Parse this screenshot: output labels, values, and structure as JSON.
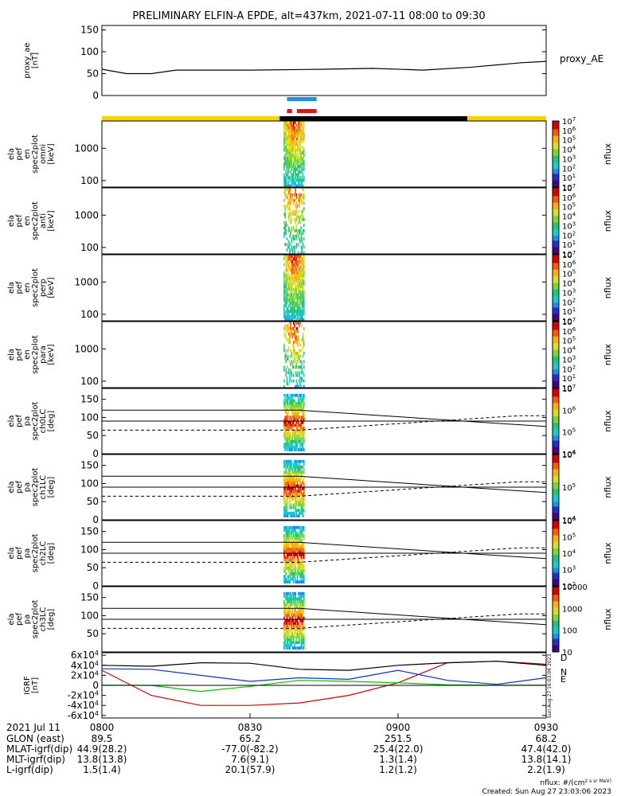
{
  "title": "PRELIMINARY ELFIN-A EPDE, alt=437km, 2021-07-11 08:00 to 09:30",
  "colors": {
    "bar_yellow": "#f5d400",
    "bar_black": "#000000",
    "bar_blue": "#1f8fe6",
    "bar_red": "#e81010",
    "bfield_D": "#d00000",
    "bfield_N": "#1030c0",
    "bfield_E": "#00c000",
    "bfield_total": "#000000"
  },
  "side_stamp": "Sun Aug 27 16:03:06 2023",
  "footer": {
    "nflux_unit": "nflux: #/(cm^2 s sr MeV)",
    "created": "Created: Sun Aug 27 23:03:06 2023"
  },
  "x_axis": {
    "date": "2021 Jul 11",
    "ticks": [
      "0800",
      "0830",
      "0900",
      "0930"
    ],
    "rows": [
      {
        "label": "GLON (east)",
        "values": [
          "89.5",
          "65.2",
          "251.5",
          "68.2"
        ]
      },
      {
        "label": "MLAT-igrf(dip)",
        "values": [
          "44.9(28.2)",
          "-77.0(-82.2)",
          "25.4(22.0)",
          "47.4(42.0)"
        ]
      },
      {
        "label": "MLT-igrf(dip)",
        "values": [
          "13.8(13.8)",
          "7.6(9.1)",
          "1.3(1.4)",
          "13.8(14.1)"
        ]
      },
      {
        "label": "L-igrf(dip)",
        "values": [
          "1.5(1.4)",
          "20.1(57.9)",
          "1.2(1.2)",
          "2.2(1.9)"
        ]
      }
    ]
  },
  "chart_data": [
    {
      "type": "line",
      "panel": "proxy_ae",
      "ylabel_lines": [
        "proxy_ae",
        "[nT]"
      ],
      "legend": "proxy_AE",
      "yticks": [
        "0",
        "50",
        "100",
        "150"
      ],
      "ylim": [
        0,
        160
      ],
      "xlim": [
        0,
        90
      ],
      "x": [
        0,
        5,
        10,
        15,
        30,
        45,
        55,
        65,
        75,
        85,
        90
      ],
      "series": [
        {
          "values": [
            60,
            50,
            50,
            58,
            58,
            60,
            62,
            58,
            65,
            75,
            78
          ]
        }
      ]
    },
    {
      "type": "heatmap",
      "panel": "omni",
      "ylabel_lines": [
        "ela",
        "pef",
        "en",
        "spec2plot",
        "omni",
        "[keV]"
      ],
      "yscale": "log",
      "yticks": [
        "100",
        "1000"
      ],
      "ylim": [
        63,
        7000
      ],
      "colorbar": {
        "label": "nflux",
        "ticks": [
          "10",
          "10^1",
          "10^2",
          "10^3",
          "10^4",
          "10^5",
          "10^6",
          "10^7"
        ]
      },
      "active_x_range": [
        36,
        41
      ]
    },
    {
      "type": "heatmap",
      "panel": "anti",
      "ylabel_lines": [
        "ela",
        "pef",
        "en",
        "spec2plot",
        "anti",
        "[keV]"
      ],
      "yscale": "log",
      "yticks": [
        "100",
        "1000"
      ],
      "ylim": [
        63,
        7000
      ],
      "colorbar": {
        "label": "nflux",
        "ticks": [
          "10",
          "10^1",
          "10^2",
          "10^3",
          "10^4",
          "10^5",
          "10^6",
          "10^7"
        ]
      },
      "active_x_range": [
        36,
        41
      ]
    },
    {
      "type": "heatmap",
      "panel": "perp",
      "ylabel_lines": [
        "ela",
        "pef",
        "en",
        "spec2plot",
        "perp",
        "[keV]"
      ],
      "yscale": "log",
      "yticks": [
        "100",
        "1000"
      ],
      "ylim": [
        63,
        7000
      ],
      "colorbar": {
        "label": "nflux",
        "ticks": [
          "10",
          "10^1",
          "10^2",
          "10^3",
          "10^4",
          "10^5",
          "10^6",
          "10^7"
        ]
      },
      "active_x_range": [
        36,
        41
      ]
    },
    {
      "type": "heatmap",
      "panel": "para",
      "ylabel_lines": [
        "ela",
        "pef",
        "en",
        "spec2plot",
        "para",
        "[keV]"
      ],
      "yscale": "log",
      "yticks": [
        "100",
        "1000"
      ],
      "ylim": [
        63,
        7000
      ],
      "colorbar": {
        "label": "nflux",
        "ticks": [
          "10",
          "10^1",
          "10^2",
          "10^3",
          "10^4",
          "10^5",
          "10^6",
          "10^7"
        ]
      },
      "active_x_range": [
        36,
        41
      ]
    },
    {
      "type": "heatmap",
      "panel": "ch0LC",
      "ylabel_lines": [
        "ela",
        "pef",
        "pa",
        "spec2plot",
        "ch0LC",
        "[deg]"
      ],
      "yticks": [
        "0",
        "50",
        "100",
        "150"
      ],
      "ylim": [
        0,
        180
      ],
      "colorbar": {
        "label": "nflux",
        "ticks": [
          "10^4",
          "10^5",
          "10^6",
          "10^7"
        ]
      },
      "active_x_range": [
        36,
        41
      ]
    },
    {
      "type": "heatmap",
      "panel": "ch1LC",
      "ylabel_lines": [
        "ela",
        "pef",
        "pa",
        "spec2plot",
        "ch1LC",
        "[deg]"
      ],
      "yticks": [
        "0",
        "50",
        "100",
        "150"
      ],
      "ylim": [
        0,
        180
      ],
      "colorbar": {
        "label": "nflux",
        "ticks": [
          "10^4",
          "10^5",
          "10^6"
        ]
      },
      "active_x_range": [
        36,
        41
      ]
    },
    {
      "type": "heatmap",
      "panel": "ch2LC",
      "ylabel_lines": [
        "ela",
        "pef",
        "pa",
        "spec2plot",
        "ch2LC",
        "[deg]"
      ],
      "yticks": [
        "0",
        "50",
        "100",
        "150"
      ],
      "ylim": [
        0,
        180
      ],
      "colorbar": {
        "label": "nflux",
        "ticks": [
          "10^2",
          "10^3",
          "10^4",
          "10^5",
          "10^6"
        ]
      },
      "active_x_range": [
        36,
        41
      ]
    },
    {
      "type": "heatmap",
      "panel": "ch3LC",
      "ylabel_lines": [
        "ela",
        "pef",
        "pa",
        "spec2plot",
        "ch3LC",
        "[deg]"
      ],
      "yticks": [
        "50",
        "100",
        "150"
      ],
      "ylim": [
        0,
        180
      ],
      "colorbar": {
        "label": "nflux",
        "ticks": [
          "10",
          "100",
          "1000",
          "10000"
        ]
      },
      "active_x_range": [
        36,
        41
      ]
    },
    {
      "type": "line",
      "panel": "IGRF",
      "ylabel_lines": [
        "IGRF",
        "[nT]"
      ],
      "yticks": [
        "-6x10^4",
        "-4x10^4",
        "-2x10^4",
        "0",
        "2x10^4",
        "4x10^4",
        "6x10^4"
      ],
      "ylim": [
        -65000,
        65000
      ],
      "xlim": [
        0,
        90
      ],
      "x": [
        0,
        10,
        20,
        30,
        40,
        50,
        60,
        70,
        80,
        90
      ],
      "series": [
        {
          "name": "D",
          "values": [
            30000,
            -20000,
            -40000,
            -40000,
            -35000,
            -20000,
            5000,
            45000,
            48000,
            42000
          ]
        },
        {
          "name": "N",
          "values": [
            33000,
            32000,
            20000,
            8000,
            15000,
            12000,
            30000,
            10000,
            2000,
            15000
          ]
        },
        {
          "name": "E",
          "values": [
            500,
            0,
            -12000,
            -2000,
            10000,
            8000,
            5000,
            1000,
            500,
            500
          ]
        },
        {
          "values": [
            40000,
            38000,
            45000,
            44000,
            32000,
            30000,
            40000,
            45000,
            48000,
            40000
          ]
        }
      ]
    }
  ]
}
